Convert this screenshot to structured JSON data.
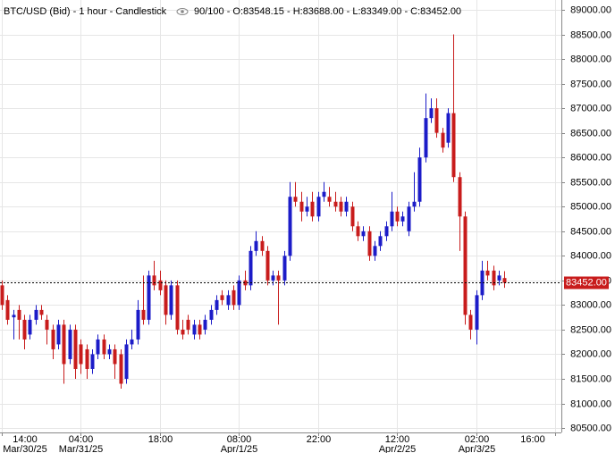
{
  "chart_data": {
    "type": "candlestick",
    "title": "BTC/USD (Bid) - 1 hour - Candlestick",
    "info": "90/100 - O:83548.15 - H:83688.00 - L:83349.00 - C:83452.00",
    "up_color": "#1c1cc8",
    "down_color": "#c81c1c",
    "x": [
      14,
      15,
      16,
      17,
      18,
      19,
      20,
      21,
      22,
      23,
      24,
      25,
      26,
      27,
      28,
      29,
      30,
      31,
      32,
      33,
      34,
      35,
      36,
      37,
      38,
      39,
      40,
      41,
      42,
      43,
      44,
      45,
      46,
      47,
      48,
      49,
      50,
      51,
      52,
      53,
      54,
      55,
      56,
      57,
      58,
      59,
      60,
      61,
      62,
      63,
      64,
      65,
      66,
      67,
      68,
      69,
      70,
      71,
      72,
      73,
      74,
      75,
      76,
      77,
      78,
      79,
      80,
      81,
      82,
      83,
      84,
      85,
      86,
      87,
      88,
      89,
      90,
      91,
      92,
      93,
      94,
      95,
      96,
      97,
      98,
      99,
      100,
      101,
      102,
      103
    ],
    "open": [
      83400,
      83100,
      82750,
      82900,
      82700,
      82400,
      82700,
      82900,
      82700,
      82500,
      82200,
      82600,
      81900,
      82500,
      82200,
      82100,
      81700,
      82000,
      82300,
      82000,
      82100,
      82000,
      81500,
      82200,
      82300,
      82900,
      82700,
      83600,
      83500,
      83400,
      82800,
      83400,
      82500,
      82700,
      82400,
      82600,
      82500,
      82700,
      82900,
      83200,
      83000,
      83300,
      83000,
      83500,
      83400,
      84100,
      84300,
      84100,
      83500,
      83600,
      83500,
      84000,
      85200,
      85100,
      84900,
      85100,
      84800,
      85200,
      85200,
      85100,
      85100,
      84900,
      85000,
      84600,
      84400,
      84500,
      84000,
      84200,
      84400,
      84600,
      84900,
      84700,
      84500,
      85000,
      85100,
      86000,
      86800,
      87000,
      86500,
      86300,
      86900,
      85600,
      84800,
      82800,
      82500,
      83200,
      83700,
      83700,
      83500,
      83548.15
    ],
    "high": [
      83500,
      83200,
      82900,
      83000,
      82800,
      82800,
      83000,
      83000,
      82800,
      82600,
      82700,
      82700,
      82600,
      82600,
      82300,
      82200,
      82100,
      82400,
      82400,
      82200,
      82200,
      82100,
      82300,
      82500,
      83100,
      83600,
      83700,
      83900,
      83700,
      83500,
      83500,
      83500,
      82700,
      82800,
      82700,
      82700,
      82800,
      83000,
      83200,
      83300,
      83300,
      83400,
      83600,
      83700,
      84200,
      84500,
      84400,
      84200,
      83700,
      83700,
      84100,
      85500,
      85500,
      85300,
      85200,
      85300,
      85300,
      85500,
      85400,
      85300,
      85200,
      85200,
      85100,
      84700,
      84600,
      84600,
      84300,
      84500,
      84700,
      85300,
      85000,
      84900,
      85100,
      85700,
      86200,
      87300,
      87200,
      87200,
      86600,
      87000,
      88500,
      85700,
      84900,
      82900,
      83300,
      83900,
      83900,
      83800,
      83700,
      83688
    ],
    "low": [
      82900,
      82600,
      82300,
      82300,
      82100,
      82300,
      82600,
      82700,
      82200,
      81900,
      82100,
      81400,
      81800,
      81500,
      81600,
      81500,
      81600,
      81900,
      81900,
      81900,
      81500,
      81300,
      81400,
      82100,
      82200,
      82600,
      82600,
      83300,
      83200,
      82600,
      82700,
      82400,
      82300,
      82400,
      82300,
      82300,
      82400,
      82600,
      82800,
      83000,
      82900,
      82900,
      82900,
      83300,
      83300,
      84000,
      84000,
      83400,
      83400,
      82600,
      83400,
      83900,
      85000,
      84700,
      84800,
      84700,
      84700,
      85100,
      85000,
      84900,
      84800,
      84800,
      84500,
      84300,
      84300,
      83900,
      83900,
      84100,
      84300,
      84500,
      84600,
      84600,
      84400,
      84900,
      85000,
      85900,
      86700,
      86400,
      86100,
      86200,
      85500,
      84100,
      82600,
      82300,
      82200,
      83100,
      83500,
      83300,
      83400,
      83349
    ],
    "close": [
      83000,
      82700,
      82800,
      82700,
      82300,
      82700,
      82900,
      82800,
      82500,
      82100,
      82600,
      81800,
      82500,
      81700,
      81800,
      81700,
      82000,
      82300,
      82000,
      82100,
      81800,
      81400,
      82200,
      82300,
      82900,
      82700,
      83600,
      83400,
      83300,
      82800,
      83400,
      82500,
      82400,
      82500,
      82600,
      82400,
      82700,
      82900,
      83100,
      83100,
      83200,
      83000,
      83500,
      83400,
      84100,
      84300,
      84100,
      83500,
      83600,
      83500,
      84000,
      85200,
      85100,
      84900,
      85000,
      84800,
      85200,
      85300,
      85100,
      85000,
      84900,
      85100,
      84600,
      84400,
      84500,
      84000,
      84200,
      84400,
      84600,
      84900,
      84700,
      84800,
      85000,
      85100,
      86000,
      86800,
      87000,
      86500,
      86200,
      86900,
      85600,
      84800,
      82800,
      82500,
      83200,
      83700,
      83600,
      83400,
      83600,
      83452
    ],
    "last_price": {
      "value": 83452,
      "label": "83452.00"
    },
    "xlim": [
      13.7,
      113.1
    ],
    "xticks": [
      {
        "value": 14,
        "label": "14:00",
        "date": "Mar/30/25"
      },
      {
        "value": 28,
        "label": "04:00",
        "date": "Mar/31/25"
      },
      {
        "value": 42,
        "label": "18:00"
      },
      {
        "value": 56,
        "label": "08:00",
        "date": "Apr/1/25"
      },
      {
        "value": 70,
        "label": "22:00"
      },
      {
        "value": 84,
        "label": "12:00",
        "date": "Apr/2/25"
      },
      {
        "value": 98,
        "label": "02:00",
        "date": "Apr/3/25"
      },
      {
        "value": 112,
        "label": "16:00"
      }
    ],
    "ylim": [
      80410,
      89200
    ],
    "yticks": [
      {
        "value": 80500,
        "label": "80500.00"
      },
      {
        "value": 81000,
        "label": "81000.00"
      },
      {
        "value": 81500,
        "label": "81500.00"
      },
      {
        "value": 82000,
        "label": "82000.00"
      },
      {
        "value": 82500,
        "label": "82500.00"
      },
      {
        "value": 83000,
        "label": "83000.00"
      },
      {
        "value": 83500,
        "label": "83500.00"
      },
      {
        "value": 84000,
        "label": "84000.00"
      },
      {
        "value": 84500,
        "label": "84500.00"
      },
      {
        "value": 85000,
        "label": "85000.00"
      },
      {
        "value": 85500,
        "label": "85500.00"
      },
      {
        "value": 86000,
        "label": "86000.00"
      },
      {
        "value": 86500,
        "label": "86500.00"
      },
      {
        "value": 87000,
        "label": "87000.00"
      },
      {
        "value": 87500,
        "label": "87500.00"
      },
      {
        "value": 88000,
        "label": "88000.00"
      },
      {
        "value": 88500,
        "label": "88500.00"
      },
      {
        "value": 89000,
        "label": "89000.00"
      }
    ],
    "grid": true
  }
}
